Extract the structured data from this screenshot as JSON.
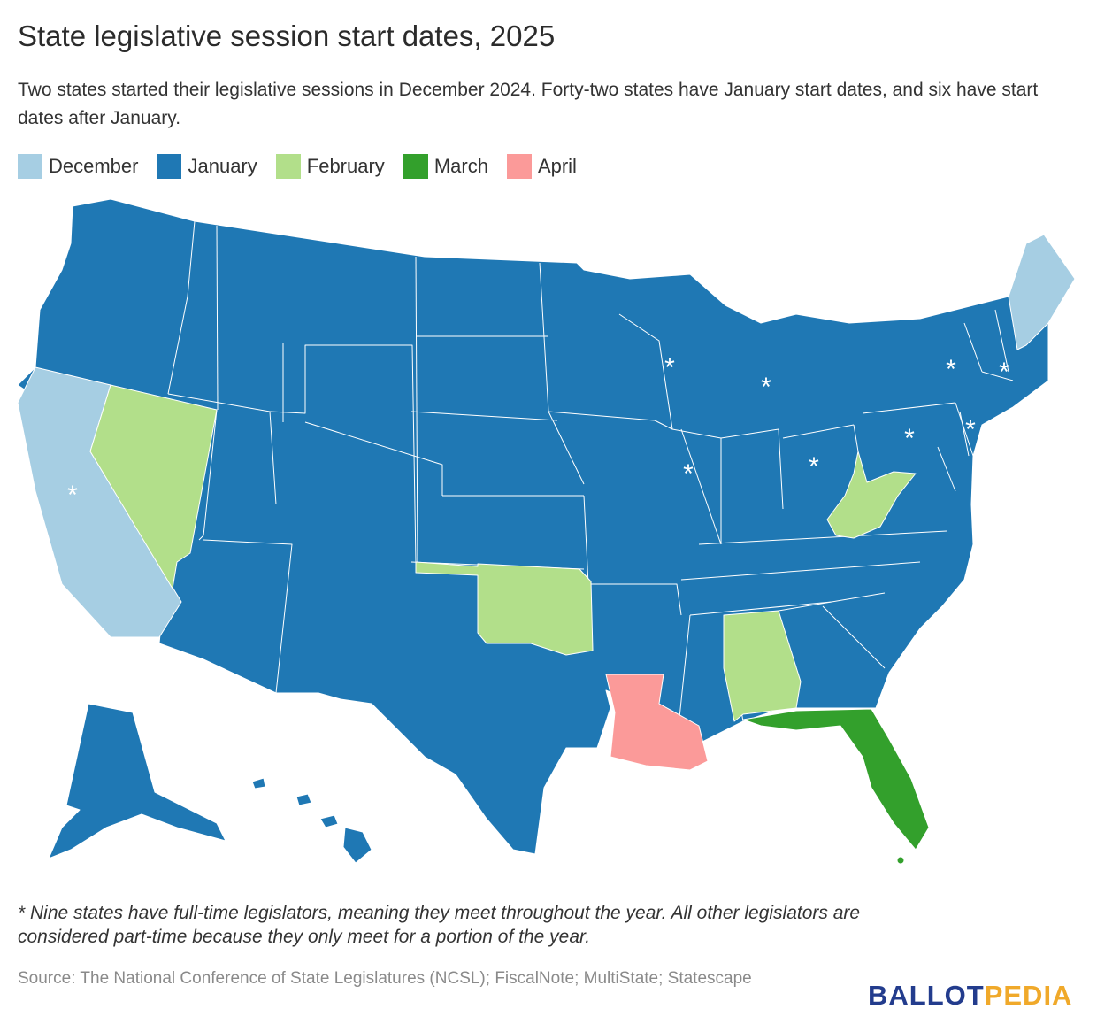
{
  "title": "State legislative session start dates, 2025",
  "subtitle": "Two states started their legislative sessions in December 2024. Forty-two states have January start dates, and six have start dates after January.",
  "legend": [
    {
      "label": "December",
      "color": "#a6cee3"
    },
    {
      "label": "January",
      "color": "#1f78b4"
    },
    {
      "label": "February",
      "color": "#b2df8a"
    },
    {
      "label": "March",
      "color": "#33a02c"
    },
    {
      "label": "April",
      "color": "#fb9a99"
    }
  ],
  "map": {
    "asterisk": "*",
    "states": [
      {
        "name": "California",
        "category": "December",
        "full_time": true
      },
      {
        "name": "Maine",
        "category": "December",
        "full_time": false
      },
      {
        "name": "Nevada",
        "category": "February",
        "full_time": false
      },
      {
        "name": "Oklahoma",
        "category": "February",
        "full_time": false
      },
      {
        "name": "Alabama",
        "category": "February",
        "full_time": false
      },
      {
        "name": "West Virginia",
        "category": "February",
        "full_time": false
      },
      {
        "name": "Florida",
        "category": "March",
        "full_time": false
      },
      {
        "name": "Louisiana",
        "category": "April",
        "full_time": false
      },
      {
        "name": "Wisconsin",
        "category": "January",
        "full_time": true
      },
      {
        "name": "Michigan",
        "category": "January",
        "full_time": true
      },
      {
        "name": "Illinois",
        "category": "January",
        "full_time": true
      },
      {
        "name": "Ohio",
        "category": "January",
        "full_time": true
      },
      {
        "name": "Pennsylvania",
        "category": "January",
        "full_time": true
      },
      {
        "name": "New York",
        "category": "January",
        "full_time": true
      },
      {
        "name": "New Jersey",
        "category": "January",
        "full_time": true
      },
      {
        "name": "Massachusetts",
        "category": "January",
        "full_time": true
      }
    ]
  },
  "footnote": "* Nine states have full-time legislators, meaning they meet throughout the year. All other legislators are considered part-time because they only meet for a portion of the year.",
  "source": "Source: The National Conference of State Legislatures (NCSL); FiscalNote; MultiState; Statescape",
  "logo": {
    "part1": "BALLOT",
    "part2": "PEDIA"
  }
}
